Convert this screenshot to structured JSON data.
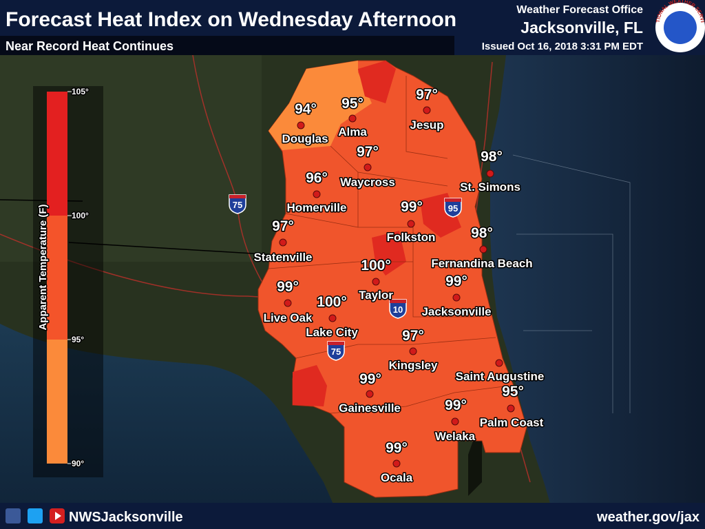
{
  "header": {
    "title": "Forecast Heat Index on Wednesday Afternoon",
    "subtitle": "Near Record Heat Continues",
    "office": "Weather Forecast Office",
    "location": "Jacksonville, FL",
    "issued": "Issued Oct 16, 2018 3:31 PM EDT",
    "logo": "NATIONAL WEATHER SERVICE"
  },
  "legend": {
    "label": "Apparent Temperature (F)",
    "ticks": [
      "105°",
      "100°",
      "95°",
      "90°"
    ]
  },
  "cities": [
    {
      "name": "Douglas",
      "temp": "94°"
    },
    {
      "name": "Alma",
      "temp": "95°"
    },
    {
      "name": "Jesup",
      "temp": "97°"
    },
    {
      "name": "Waycross",
      "temp": "97°"
    },
    {
      "name": "St. Simons",
      "temp": "98°"
    },
    {
      "name": "Homerville",
      "temp": "96°"
    },
    {
      "name": "Folkston",
      "temp": "99°"
    },
    {
      "name": "Statenville",
      "temp": "97°"
    },
    {
      "name": "Fernandina Beach",
      "temp": "98°"
    },
    {
      "name": "Taylor",
      "temp": "100°"
    },
    {
      "name": "Jacksonville",
      "temp": "99°"
    },
    {
      "name": "Live Oak",
      "temp": "99°"
    },
    {
      "name": "Lake City",
      "temp": "100°"
    },
    {
      "name": "Kingsley",
      "temp": "97°"
    },
    {
      "name": "Saint Augustine"
    },
    {
      "name": "Palm Coast",
      "temp": "95°"
    },
    {
      "name": "Gainesville",
      "temp": "99°"
    },
    {
      "name": "Welaka",
      "temp": "99°"
    },
    {
      "name": "Ocala",
      "temp": "99°"
    }
  ],
  "interstates": [
    "75",
    "95",
    "10",
    "75"
  ],
  "footer": {
    "handle": "NWSJacksonville",
    "url": "weather.gov/jax"
  }
}
